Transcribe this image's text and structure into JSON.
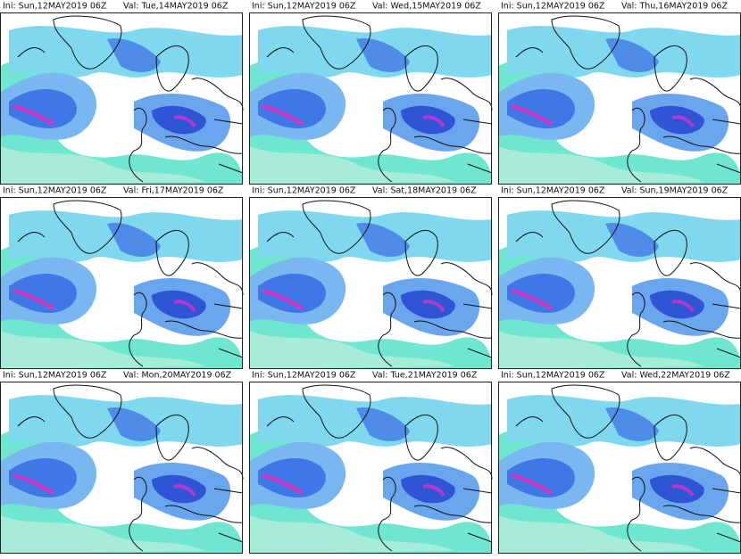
{
  "panels": [
    {
      "ini": "Ini: Sun,12MAY2019 06Z",
      "val": "Val: Tue,14MAY2019 06Z"
    },
    {
      "ini": "Ini: Sun,12MAY2019 06Z",
      "val": "Val: Wed,15MAY2019 06Z"
    },
    {
      "ini": "Ini: Sun,12MAY2019 06Z",
      "val": "Val: Thu,16MAY2019 06Z"
    },
    {
      "ini": "Ini: Sun,12MAY2019 06Z",
      "val": "Val: Fri,17MAY2019 06Z"
    },
    {
      "ini": "Ini: Sun,12MAY2019 06Z",
      "val": "Val: Sat,18MAY2019 06Z"
    },
    {
      "ini": "Ini: Sun,12MAY2019 06Z",
      "val": "Val: Sun,19MAY2019 06Z"
    },
    {
      "ini": "Ini: Sun,12MAY2019 06Z",
      "val": "Val: Mon,20MAY2019 06Z"
    },
    {
      "ini": "Ini: Sun,12MAY2019 06Z",
      "val": "Val: Tue,21MAY2019 06Z"
    },
    {
      "ini": "Ini: Sun,12MAY2019 06Z",
      "val": "Val: Wed,22MAY2019 06Z"
    }
  ]
}
